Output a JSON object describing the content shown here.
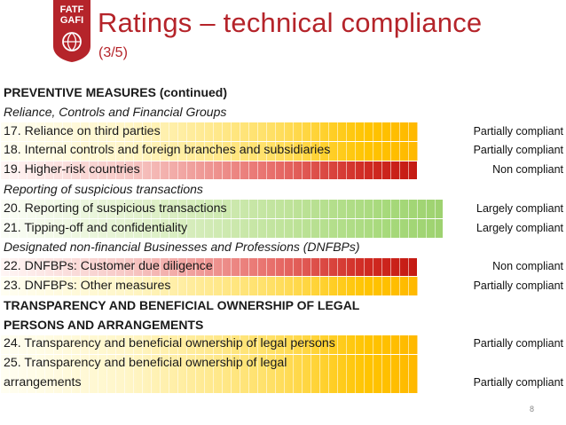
{
  "logo": {
    "line1": "FATF",
    "line2": "GAFI"
  },
  "title": "Ratings – technical compliance",
  "subtitle": "(3/5)",
  "heading_main": "PREVENTIVE MEASURES (continued)",
  "subheading_1": "Reliance, Controls and Financial Groups",
  "rows_a": [
    {
      "label": "17. Reliance on third parties",
      "rating": "Partially compliant"
    },
    {
      "label": "18. Internal controls and foreign branches and subsidiaries",
      "rating": "Partially compliant"
    },
    {
      "label": "19. Higher-risk countries",
      "rating": "Non compliant"
    }
  ],
  "subheading_2": "Reporting of suspicious transactions",
  "rows_b": [
    {
      "label": "20. Reporting of suspicious transactions",
      "rating": "Largely compliant"
    },
    {
      "label": "21. Tipping-off and confidentiality",
      "rating": "Largely compliant"
    }
  ],
  "subheading_3": "Designated non-financial Businesses and Professions (DNFBPs)",
  "rows_c": [
    {
      "label": "22. DNFBPs: Customer due diligence",
      "rating": "Non compliant"
    },
    {
      "label": "23. DNFBPs: Other measures",
      "rating": "Partially compliant"
    }
  ],
  "heading_transparency_1": "TRANSPARENCY AND BENEFICIAL OWNERSHIP OF LEGAL",
  "heading_transparency_2": "PERSONS AND ARRANGEMENTS",
  "rows_d": [
    {
      "label": "24. Transparency and beneficial ownership of legal persons",
      "rating": "Partially compliant"
    }
  ],
  "row_25": {
    "label_line1": "25. Transparency and beneficial ownership of legal",
    "label_line2": "arrangements",
    "rating": "Partially compliant"
  },
  "page_number": "8",
  "colors": {
    "title": "#b5242a",
    "partially_compliant": "#ffc400",
    "non_compliant": "#c41a12",
    "largely_compliant": "#9ed270"
  }
}
